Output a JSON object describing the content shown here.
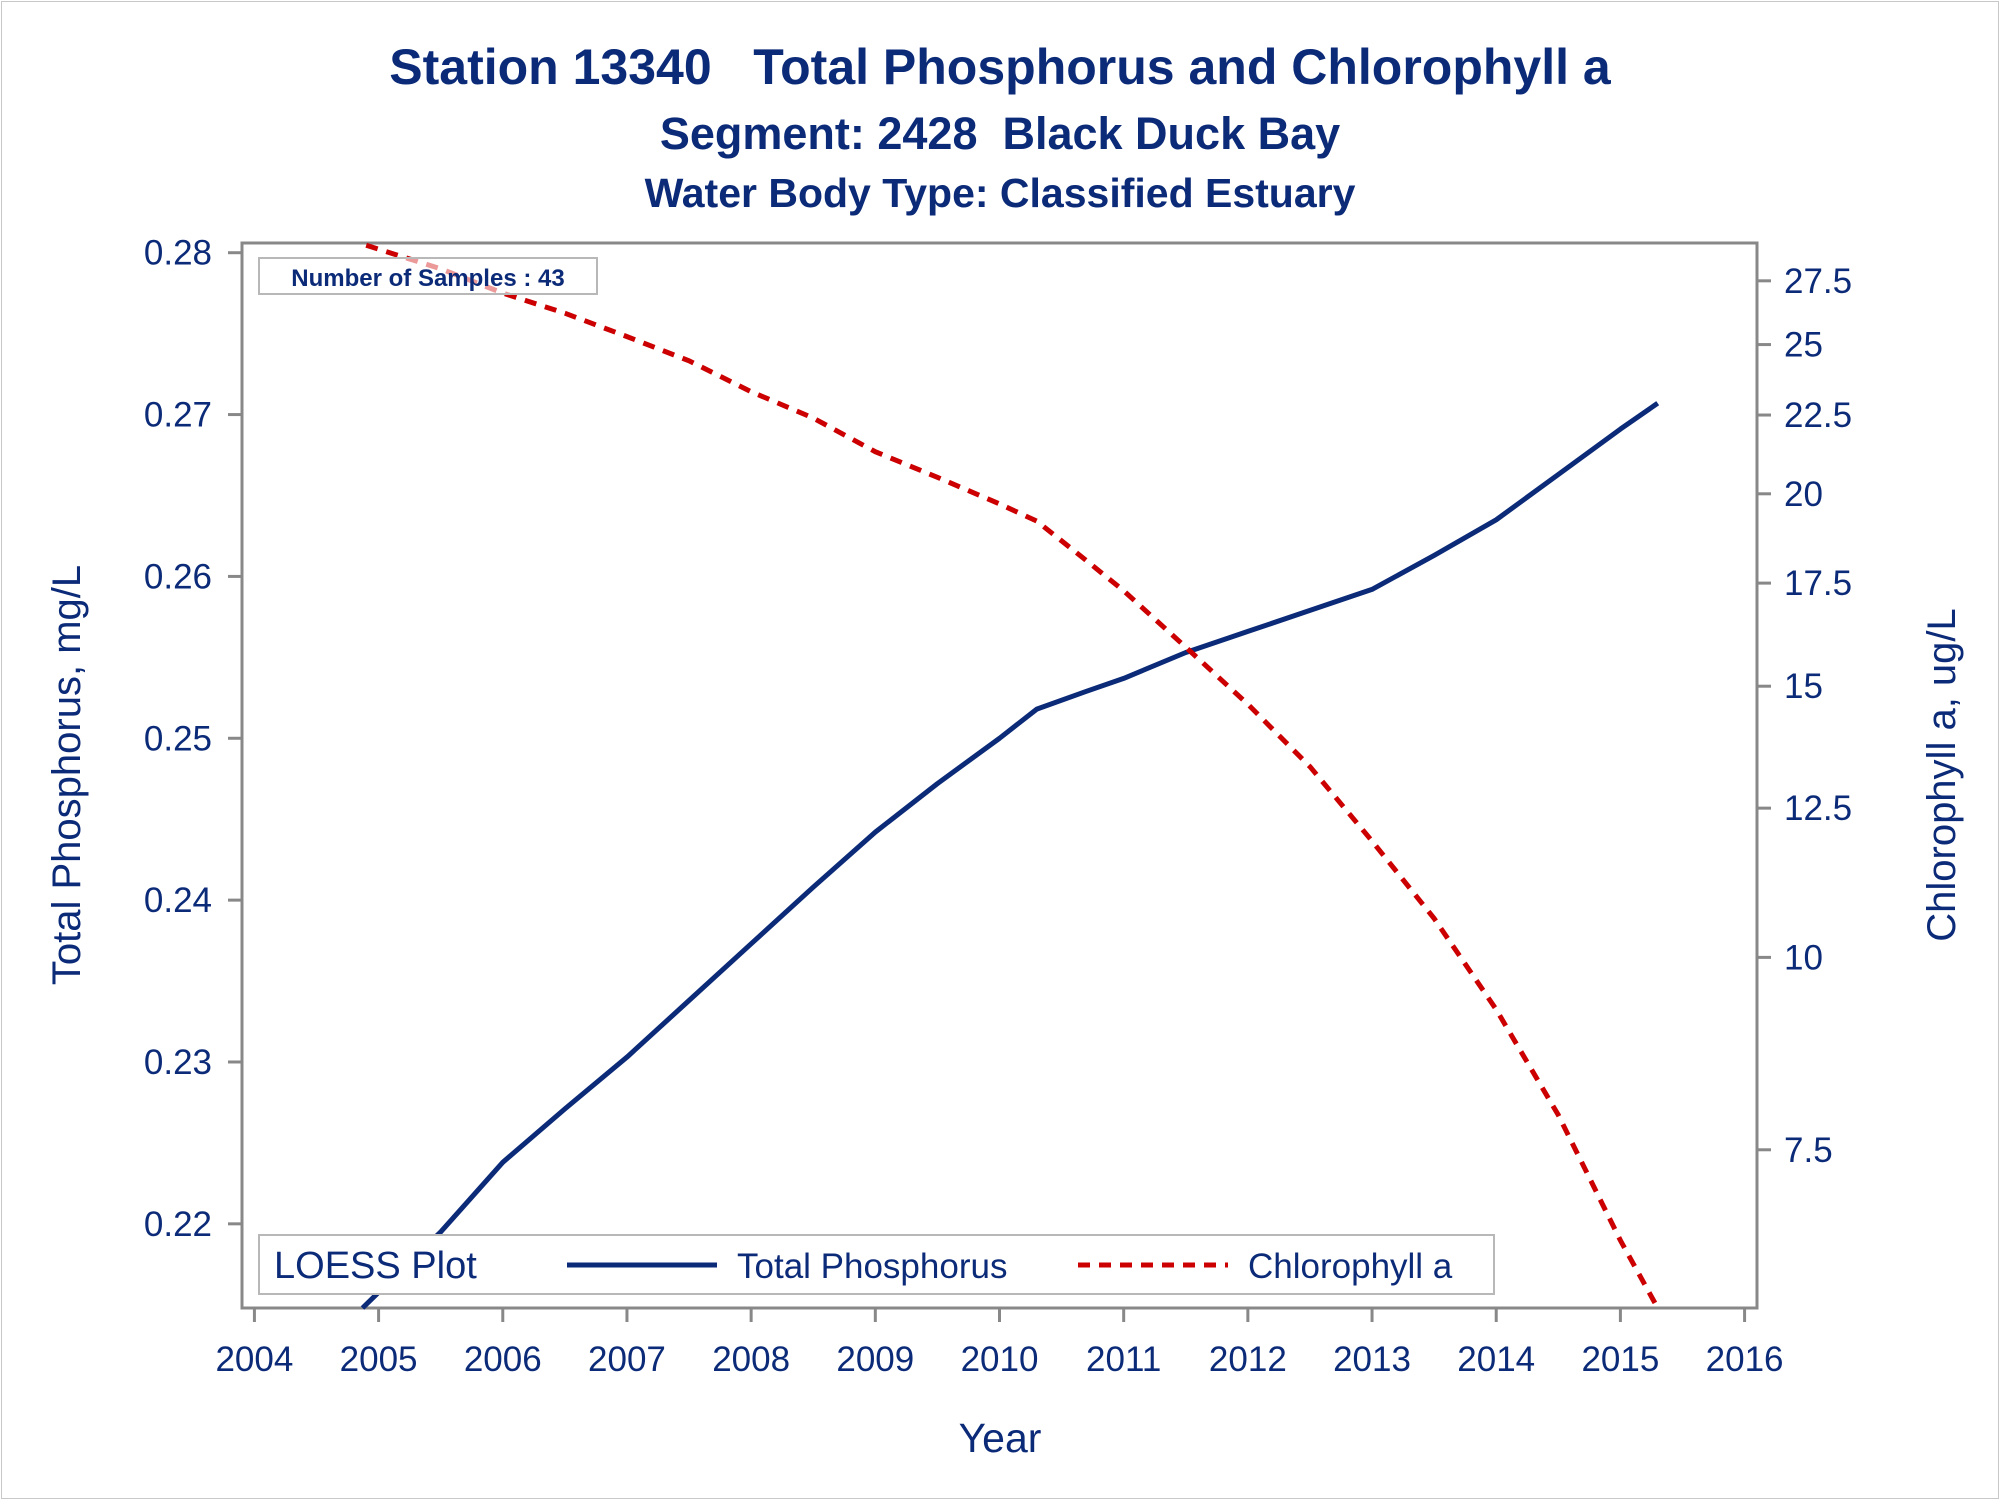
{
  "titles": {
    "line1": "Station 13340   Total Phosphorus and Chlorophyll a",
    "line2": "Segment: 2428  Black Duck Bay",
    "line3": "Water Body Type: Classified Estuary"
  },
  "inset_label": "Number of Samples : 43",
  "legend": {
    "title": "LOESS Plot",
    "items": [
      "Total Phosphorus",
      "Chlorophyll a"
    ]
  },
  "colors": {
    "title_text": "#0b2a78",
    "phosphorus_line": "#0b2a78",
    "chlorophyll_line": "#cc0000",
    "axis_frame": "#888888"
  },
  "chart_data": {
    "type": "line",
    "title": "Station 13340   Total Phosphorus and Chlorophyll a",
    "xlabel": "Year",
    "ylabel": "Total Phosphorus, mg/L",
    "y2label": "Chlorophyll a, ug/L",
    "y2scale": "log",
    "xlim": [
      2003.9,
      2016.1
    ],
    "ylim": [
      0.2148,
      0.2806
    ],
    "y2lim": [
      5.92,
      29.1
    ],
    "xticks": [
      2004,
      2005,
      2006,
      2007,
      2008,
      2009,
      2010,
      2011,
      2012,
      2013,
      2014,
      2015,
      2016
    ],
    "yticks": [
      0.22,
      0.23,
      0.24,
      0.25,
      0.26,
      0.27,
      0.28
    ],
    "y2ticks": [
      7.5,
      10,
      12.5,
      15,
      17.5,
      20,
      22.5,
      25,
      27.5
    ],
    "grid": false,
    "legend_position": "bottom-inside",
    "series": [
      {
        "name": "Total Phosphorus",
        "axis": "left",
        "style": "solid",
        "x": [
          2004.87,
          2005.5,
          2006.0,
          2006.5,
          2007.0,
          2007.5,
          2008.0,
          2008.5,
          2009.0,
          2009.5,
          2010.0,
          2010.3,
          2010.7,
          2011.0,
          2011.5,
          2012.0,
          2012.5,
          2013.0,
          2013.5,
          2014.0,
          2014.5,
          2015.0,
          2015.3
        ],
        "y": [
          0.2148,
          0.2195,
          0.2238,
          0.2271,
          0.2303,
          0.2338,
          0.2373,
          0.2408,
          0.2442,
          0.2472,
          0.25,
          0.2518,
          0.2529,
          0.2537,
          0.2553,
          0.2566,
          0.2579,
          0.2592,
          0.2613,
          0.2635,
          0.2663,
          0.2691,
          0.2707
        ]
      },
      {
        "name": "Chlorophyll a",
        "axis": "right",
        "style": "dashed",
        "x": [
          2004.9,
          2005.5,
          2006.0,
          2006.5,
          2007.0,
          2007.5,
          2008.0,
          2008.5,
          2009.0,
          2009.5,
          2010.0,
          2010.3,
          2010.7,
          2011.0,
          2011.5,
          2012.0,
          2012.5,
          2013.0,
          2013.5,
          2014.0,
          2014.5,
          2015.0,
          2015.3
        ],
        "y": [
          29.0,
          28.0,
          27.0,
          26.2,
          25.3,
          24.4,
          23.3,
          22.4,
          21.3,
          20.5,
          19.7,
          19.2,
          18.1,
          17.3,
          15.9,
          14.6,
          13.3,
          11.9,
          10.6,
          9.25,
          7.9,
          6.55,
          5.92
        ]
      }
    ]
  }
}
